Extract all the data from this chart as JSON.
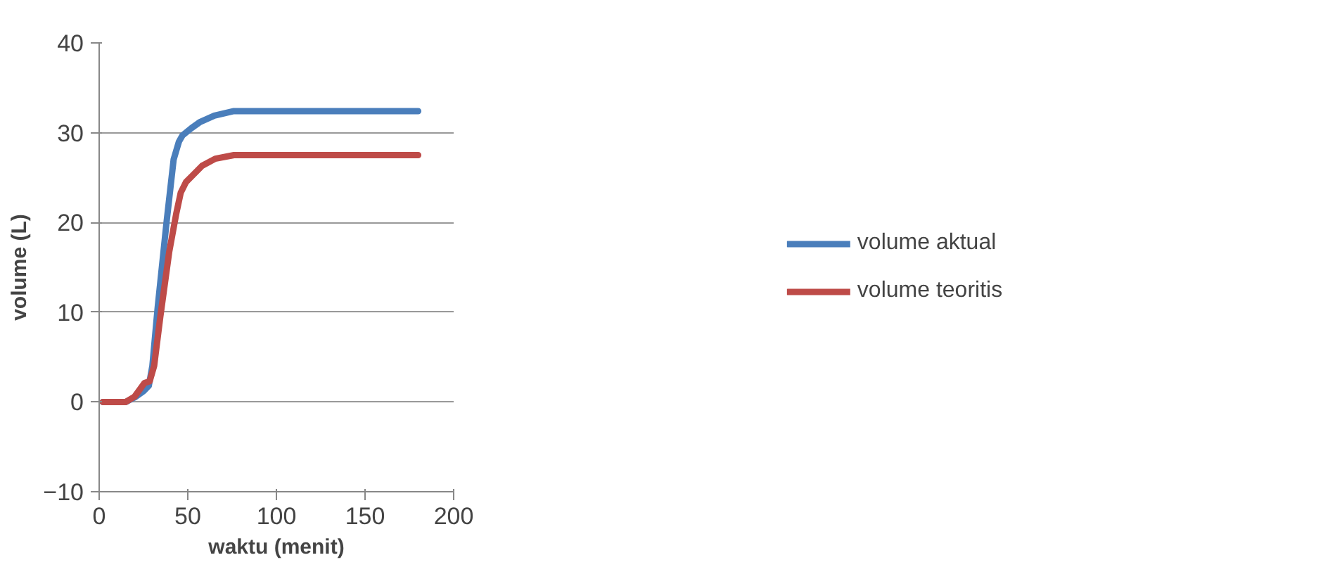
{
  "chart_data": {
    "type": "line",
    "xlabel": "waktu (menit)",
    "ylabel": "volume (L)",
    "xlim": [
      0,
      200
    ],
    "xticks": [
      0,
      50,
      100,
      150,
      200
    ],
    "ylim": [
      -10,
      40
    ],
    "yticks": [
      -10,
      0,
      10,
      20,
      30,
      40
    ],
    "grid": "y",
    "legend": "right",
    "marker": "none",
    "line_style": "solid",
    "series": [
      {
        "name": "volume aktual",
        "color": "#4a7ebb",
        "x": [
          2,
          10,
          15,
          20,
          25,
          28,
          30,
          33,
          38,
          42,
          45,
          47,
          52,
          57,
          65,
          76,
          120,
          180
        ],
        "values": [
          0,
          0,
          0,
          0.5,
          1.2,
          1.8,
          4,
          10.5,
          20,
          27,
          29,
          29.7,
          30.5,
          31.2,
          31.9,
          32.4,
          32.4,
          32.4
        ]
      },
      {
        "name": "volume teoritis",
        "color": "#be4b48",
        "x": [
          2,
          10,
          15,
          20,
          25.5,
          28.5,
          31,
          34.5,
          39.5,
          43.5,
          46,
          49,
          53,
          58,
          65.5,
          76,
          120,
          180
        ],
        "values": [
          0,
          0,
          0,
          0.6,
          2.1,
          2.3,
          4,
          9.5,
          16.7,
          21,
          23.3,
          24.5,
          25.3,
          26.3,
          27.1,
          27.5,
          27.5,
          27.5
        ]
      }
    ]
  }
}
